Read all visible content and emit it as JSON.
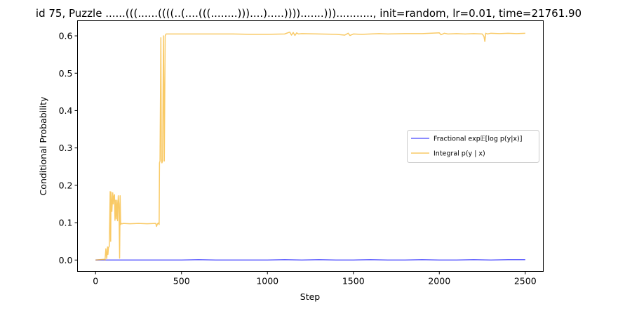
{
  "chart_data": {
    "type": "line",
    "title": "id 75, Puzzle ......(((......((((..(....(((........)))....).....)))).......)))..........., init=random, lr=0.01, time=21761.90",
    "xlabel": "Step",
    "ylabel": "Conditional Probability",
    "xlim": [
      -105,
      2605
    ],
    "ylim": [
      -0.0305,
      0.6405
    ],
    "xticks": [
      0,
      500,
      1000,
      1500,
      2000,
      2500
    ],
    "xtick_labels": [
      "0",
      "500",
      "1000",
      "1500",
      "2000",
      "2500"
    ],
    "yticks": [
      0.0,
      0.1,
      0.2,
      0.3,
      0.4,
      0.5,
      0.6
    ],
    "ytick_labels": [
      "0.0",
      "0.1",
      "0.2",
      "0.3",
      "0.4",
      "0.5",
      "0.6"
    ],
    "grid": false,
    "legend_position": "center-right",
    "series": [
      {
        "name": "Fractional exp𝔼[log p(y|x)]",
        "color": "#0000ff",
        "alpha": 0.6,
        "x": [
          0,
          100,
          200,
          300,
          400,
          500,
          600,
          700,
          800,
          900,
          1000,
          1100,
          1200,
          1300,
          1400,
          1500,
          1600,
          1700,
          1800,
          1900,
          2000,
          2100,
          2200,
          2300,
          2400,
          2500
        ],
        "y": [
          0.0,
          0.0,
          0.0,
          0.0,
          0.0,
          0.0,
          0.001,
          0.0,
          0.0,
          0.0,
          0.0,
          0.001,
          0.0,
          0.001,
          0.0,
          0.0,
          0.001,
          0.0,
          0.0,
          0.001,
          0.0,
          0.0,
          0.001,
          0.0,
          0.001,
          0.001
        ]
      },
      {
        "name": "Integral p(y | x)",
        "color": "#f5a700",
        "alpha": 0.6,
        "x": [
          0,
          50,
          55,
          60,
          65,
          70,
          72,
          75,
          80,
          85,
          88,
          90,
          95,
          100,
          103,
          106,
          110,
          113,
          116,
          120,
          124,
          128,
          132,
          136,
          140,
          143,
          146,
          150,
          155,
          160,
          200,
          250,
          300,
          350,
          355,
          360,
          365,
          370,
          372,
          375,
          380,
          383,
          386,
          390,
          395,
          400,
          405,
          410,
          500,
          600,
          700,
          800,
          900,
          1000,
          1100,
          1130,
          1140,
          1150,
          1160,
          1170,
          1180,
          1200,
          1300,
          1400,
          1450,
          1470,
          1480,
          1500,
          1550,
          1600,
          1650,
          1700,
          1800,
          1900,
          2000,
          2010,
          2030,
          2050,
          2100,
          2150,
          2200,
          2250,
          2260,
          2265,
          2270,
          2280,
          2300,
          2350,
          2400,
          2450,
          2500
        ],
        "y": [
          0.0,
          0.002,
          0.0,
          0.03,
          0.004,
          0.035,
          0.015,
          0.033,
          0.037,
          0.183,
          0.05,
          0.182,
          0.13,
          0.18,
          0.15,
          0.17,
          0.175,
          0.106,
          0.16,
          0.11,
          0.16,
          0.105,
          0.172,
          0.15,
          0.005,
          0.172,
          0.095,
          0.098,
          0.097,
          0.098,
          0.097,
          0.098,
          0.097,
          0.098,
          0.09,
          0.097,
          0.099,
          0.095,
          0.26,
          0.265,
          0.595,
          0.27,
          0.26,
          0.265,
          0.6,
          0.265,
          0.6,
          0.605,
          0.605,
          0.605,
          0.605,
          0.605,
          0.604,
          0.604,
          0.605,
          0.61,
          0.602,
          0.609,
          0.601,
          0.608,
          0.605,
          0.606,
          0.605,
          0.604,
          0.602,
          0.607,
          0.601,
          0.605,
          0.604,
          0.605,
          0.606,
          0.605,
          0.606,
          0.606,
          0.608,
          0.603,
          0.607,
          0.605,
          0.606,
          0.605,
          0.606,
          0.605,
          0.598,
          0.585,
          0.607,
          0.605,
          0.607,
          0.606,
          0.607,
          0.606,
          0.607
        ]
      }
    ]
  }
}
